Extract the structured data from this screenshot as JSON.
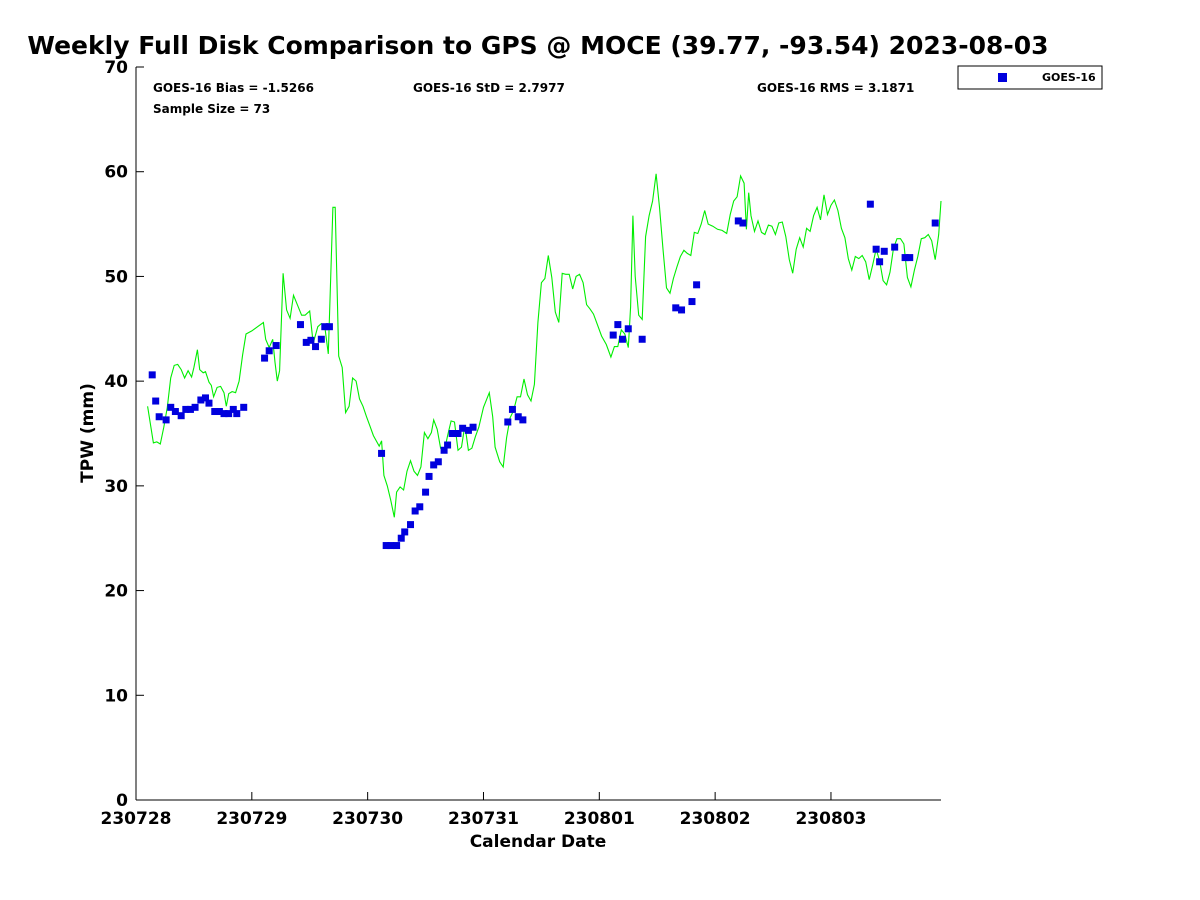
{
  "chart_data": {
    "type": "scatter",
    "title": "Weekly Full Disk Comparison to GPS @ MOCE (39.77, -93.54) 2023-08-03",
    "xlabel": "Calendar Date",
    "ylabel": "TPW (mm)",
    "xlim": [
      0,
      6.95
    ],
    "ylim": [
      0,
      70
    ],
    "yticks": [
      0,
      10,
      20,
      30,
      40,
      50,
      60,
      70
    ],
    "xticks": [
      {
        "value": 0,
        "label": "230728"
      },
      {
        "value": 1,
        "label": "230729"
      },
      {
        "value": 2,
        "label": "230730"
      },
      {
        "value": 3,
        "label": "230731"
      },
      {
        "value": 4,
        "label": "230801"
      },
      {
        "value": 5,
        "label": "230802"
      },
      {
        "value": 6,
        "label": "230803"
      }
    ],
    "grid": false,
    "legend": {
      "position": "top-right",
      "entries": [
        "GOES-16"
      ]
    },
    "stats": {
      "bias": "GOES-16 Bias = -1.5266",
      "std": "GOES-16 StD = 2.7977",
      "rms": "GOES-16 RMS = 3.1871",
      "sample": "Sample Size = 73"
    },
    "series": [
      {
        "name": "GOES-16",
        "kind": "scatter",
        "color": "#0000dd",
        "points": [
          [
            0.14,
            40.6
          ],
          [
            0.17,
            38.1
          ],
          [
            0.2,
            36.6
          ],
          [
            0.26,
            36.3
          ],
          [
            0.3,
            37.5
          ],
          [
            0.34,
            37.1
          ],
          [
            0.39,
            36.7
          ],
          [
            0.43,
            37.3
          ],
          [
            0.47,
            37.3
          ],
          [
            0.51,
            37.5
          ],
          [
            0.56,
            38.2
          ],
          [
            0.6,
            38.4
          ],
          [
            0.63,
            37.9
          ],
          [
            0.68,
            37.1
          ],
          [
            0.72,
            37.1
          ],
          [
            0.76,
            36.9
          ],
          [
            0.8,
            36.9
          ],
          [
            0.84,
            37.3
          ],
          [
            0.87,
            36.9
          ],
          [
            0.93,
            37.5
          ],
          [
            1.11,
            42.2
          ],
          [
            1.15,
            42.9
          ],
          [
            1.21,
            43.4
          ],
          [
            1.42,
            45.4
          ],
          [
            1.47,
            43.7
          ],
          [
            1.51,
            43.9
          ],
          [
            1.55,
            43.3
          ],
          [
            1.6,
            44.0
          ],
          [
            1.63,
            45.2
          ],
          [
            1.67,
            45.2
          ],
          [
            2.12,
            33.1
          ],
          [
            2.16,
            24.3
          ],
          [
            2.2,
            24.3
          ],
          [
            2.25,
            24.3
          ],
          [
            2.29,
            25.0
          ],
          [
            2.32,
            25.6
          ],
          [
            2.37,
            26.3
          ],
          [
            2.41,
            27.6
          ],
          [
            2.45,
            28.0
          ],
          [
            2.5,
            29.4
          ],
          [
            2.53,
            30.9
          ],
          [
            2.57,
            32.0
          ],
          [
            2.61,
            32.3
          ],
          [
            2.66,
            33.4
          ],
          [
            2.69,
            33.9
          ],
          [
            2.73,
            35.0
          ],
          [
            2.78,
            35.0
          ],
          [
            2.82,
            35.5
          ],
          [
            2.87,
            35.3
          ],
          [
            2.91,
            35.6
          ],
          [
            3.21,
            36.1
          ],
          [
            3.25,
            37.3
          ],
          [
            3.3,
            36.6
          ],
          [
            3.34,
            36.3
          ],
          [
            4.12,
            44.4
          ],
          [
            4.16,
            45.4
          ],
          [
            4.2,
            44.0
          ],
          [
            4.25,
            45.0
          ],
          [
            4.37,
            44.0
          ],
          [
            4.66,
            47.0
          ],
          [
            4.71,
            46.8
          ],
          [
            4.8,
            47.6
          ],
          [
            4.84,
            49.2
          ],
          [
            5.2,
            55.3
          ],
          [
            5.24,
            55.1
          ],
          [
            6.34,
            56.9
          ],
          [
            6.39,
            52.6
          ],
          [
            6.42,
            51.4
          ],
          [
            6.46,
            52.4
          ],
          [
            6.55,
            52.8
          ],
          [
            6.64,
            51.8
          ],
          [
            6.68,
            51.8
          ],
          [
            6.9,
            55.1
          ]
        ]
      },
      {
        "name": "GPS",
        "kind": "line",
        "color": "#00ee00",
        "points": [
          [
            0.1,
            37.6
          ],
          [
            0.15,
            34.1
          ],
          [
            0.18,
            34.2
          ],
          [
            0.21,
            34.0
          ],
          [
            0.24,
            35.6
          ],
          [
            0.27,
            37.5
          ],
          [
            0.3,
            40.3
          ],
          [
            0.33,
            41.5
          ],
          [
            0.36,
            41.6
          ],
          [
            0.39,
            41.1
          ],
          [
            0.42,
            40.3
          ],
          [
            0.45,
            41.0
          ],
          [
            0.48,
            40.4
          ],
          [
            0.5,
            41.3
          ],
          [
            0.53,
            43.0
          ],
          [
            0.55,
            41.1
          ],
          [
            0.58,
            40.8
          ],
          [
            0.6,
            40.9
          ],
          [
            0.63,
            39.9
          ],
          [
            0.65,
            39.6
          ],
          [
            0.67,
            38.5
          ],
          [
            0.7,
            39.4
          ],
          [
            0.73,
            39.5
          ],
          [
            0.76,
            38.9
          ],
          [
            0.78,
            37.6
          ],
          [
            0.8,
            38.8
          ],
          [
            0.83,
            39.0
          ],
          [
            0.86,
            38.9
          ],
          [
            0.89,
            40.0
          ],
          [
            0.92,
            42.5
          ],
          [
            0.95,
            44.5
          ],
          [
            1.0,
            44.8
          ],
          [
            1.05,
            45.2
          ],
          [
            1.1,
            45.6
          ],
          [
            1.12,
            44.0
          ],
          [
            1.15,
            43.2
          ],
          [
            1.18,
            44.0
          ],
          [
            1.2,
            41.8
          ],
          [
            1.22,
            40.0
          ],
          [
            1.24,
            41.0
          ],
          [
            1.27,
            50.3
          ],
          [
            1.3,
            46.8
          ],
          [
            1.33,
            46.0
          ],
          [
            1.36,
            48.2
          ],
          [
            1.4,
            47.1
          ],
          [
            1.43,
            46.3
          ],
          [
            1.46,
            46.3
          ],
          [
            1.5,
            46.7
          ],
          [
            1.53,
            43.6
          ],
          [
            1.57,
            45.2
          ],
          [
            1.6,
            45.5
          ],
          [
            1.63,
            45.2
          ],
          [
            1.66,
            42.6
          ],
          [
            1.7,
            56.6
          ],
          [
            1.72,
            56.6
          ],
          [
            1.75,
            42.4
          ],
          [
            1.78,
            41.3
          ],
          [
            1.81,
            37.0
          ],
          [
            1.84,
            37.6
          ],
          [
            1.87,
            40.3
          ],
          [
            1.9,
            40.0
          ],
          [
            1.93,
            38.3
          ],
          [
            1.96,
            37.6
          ],
          [
            1.99,
            36.6
          ],
          [
            2.02,
            35.7
          ],
          [
            2.05,
            34.8
          ],
          [
            2.1,
            33.8
          ],
          [
            2.12,
            34.3
          ],
          [
            2.14,
            31.0
          ],
          [
            2.17,
            30.0
          ],
          [
            2.2,
            28.6
          ],
          [
            2.23,
            27.0
          ],
          [
            2.25,
            29.4
          ],
          [
            2.28,
            29.9
          ],
          [
            2.31,
            29.6
          ],
          [
            2.34,
            31.4
          ],
          [
            2.37,
            32.4
          ],
          [
            2.4,
            31.4
          ],
          [
            2.43,
            31.0
          ],
          [
            2.46,
            31.8
          ],
          [
            2.49,
            35.1
          ],
          [
            2.52,
            34.5
          ],
          [
            2.55,
            35.1
          ],
          [
            2.57,
            36.3
          ],
          [
            2.6,
            35.4
          ],
          [
            2.63,
            33.6
          ],
          [
            2.66,
            33.2
          ],
          [
            2.69,
            34.8
          ],
          [
            2.72,
            36.2
          ],
          [
            2.75,
            36.1
          ],
          [
            2.78,
            33.4
          ],
          [
            2.81,
            33.7
          ],
          [
            2.84,
            35.8
          ],
          [
            2.87,
            33.4
          ],
          [
            2.9,
            33.6
          ],
          [
            2.93,
            34.7
          ],
          [
            2.96,
            35.6
          ],
          [
            3.0,
            37.5
          ],
          [
            3.05,
            38.9
          ],
          [
            3.08,
            36.6
          ],
          [
            3.1,
            33.7
          ],
          [
            3.14,
            32.3
          ],
          [
            3.17,
            31.8
          ],
          [
            3.2,
            34.6
          ],
          [
            3.23,
            36.5
          ],
          [
            3.26,
            37.2
          ],
          [
            3.29,
            38.5
          ],
          [
            3.32,
            38.5
          ],
          [
            3.35,
            40.2
          ],
          [
            3.38,
            38.7
          ],
          [
            3.41,
            38.1
          ],
          [
            3.44,
            39.7
          ],
          [
            3.47,
            45.6
          ],
          [
            3.5,
            49.4
          ],
          [
            3.53,
            49.8
          ],
          [
            3.56,
            52.0
          ],
          [
            3.59,
            49.9
          ],
          [
            3.62,
            46.6
          ],
          [
            3.65,
            45.6
          ],
          [
            3.68,
            50.3
          ],
          [
            3.71,
            50.2
          ],
          [
            3.74,
            50.2
          ],
          [
            3.77,
            48.8
          ],
          [
            3.8,
            50.0
          ],
          [
            3.83,
            50.2
          ],
          [
            3.86,
            49.4
          ],
          [
            3.89,
            47.3
          ],
          [
            3.92,
            46.9
          ],
          [
            3.95,
            46.4
          ],
          [
            3.98,
            45.5
          ],
          [
            4.02,
            44.3
          ],
          [
            4.06,
            43.5
          ],
          [
            4.1,
            42.3
          ],
          [
            4.13,
            43.3
          ],
          [
            4.16,
            43.3
          ],
          [
            4.19,
            44.9
          ],
          [
            4.22,
            44.5
          ],
          [
            4.25,
            43.2
          ],
          [
            4.27,
            47.1
          ],
          [
            4.29,
            55.8
          ],
          [
            4.31,
            50.0
          ],
          [
            4.34,
            46.3
          ],
          [
            4.37,
            45.9
          ],
          [
            4.4,
            53.8
          ],
          [
            4.43,
            55.8
          ],
          [
            4.46,
            57.2
          ],
          [
            4.49,
            59.8
          ],
          [
            4.52,
            56.6
          ],
          [
            4.55,
            52.6
          ],
          [
            4.58,
            48.9
          ],
          [
            4.61,
            48.4
          ],
          [
            4.64,
            49.8
          ],
          [
            4.67,
            50.9
          ],
          [
            4.7,
            51.9
          ],
          [
            4.73,
            52.5
          ],
          [
            4.76,
            52.2
          ],
          [
            4.79,
            52.0
          ],
          [
            4.82,
            54.2
          ],
          [
            4.85,
            54.1
          ],
          [
            4.88,
            55.0
          ],
          [
            4.91,
            56.3
          ],
          [
            4.94,
            55.0
          ],
          [
            4.98,
            54.8
          ],
          [
            5.02,
            54.5
          ],
          [
            5.06,
            54.4
          ],
          [
            5.1,
            54.1
          ],
          [
            5.13,
            55.9
          ],
          [
            5.16,
            57.2
          ],
          [
            5.19,
            57.6
          ],
          [
            5.22,
            59.6
          ],
          [
            5.25,
            58.9
          ],
          [
            5.27,
            54.5
          ],
          [
            5.29,
            58.0
          ],
          [
            5.31,
            55.8
          ],
          [
            5.34,
            54.3
          ],
          [
            5.37,
            55.3
          ],
          [
            5.4,
            54.2
          ],
          [
            5.43,
            54.0
          ],
          [
            5.46,
            54.9
          ],
          [
            5.49,
            54.8
          ],
          [
            5.52,
            54.0
          ],
          [
            5.55,
            55.1
          ],
          [
            5.58,
            55.2
          ],
          [
            5.61,
            53.8
          ],
          [
            5.64,
            51.6
          ],
          [
            5.67,
            50.3
          ],
          [
            5.7,
            52.6
          ],
          [
            5.73,
            53.7
          ],
          [
            5.76,
            52.8
          ],
          [
            5.79,
            54.6
          ],
          [
            5.82,
            54.3
          ],
          [
            5.85,
            55.8
          ],
          [
            5.88,
            56.6
          ],
          [
            5.91,
            55.4
          ],
          [
            5.94,
            57.8
          ],
          [
            5.97,
            55.9
          ],
          [
            6.0,
            56.8
          ],
          [
            6.03,
            57.3
          ],
          [
            6.06,
            56.3
          ],
          [
            6.09,
            54.6
          ],
          [
            6.12,
            53.7
          ],
          [
            6.15,
            51.7
          ],
          [
            6.18,
            50.6
          ],
          [
            6.21,
            51.9
          ],
          [
            6.24,
            51.7
          ],
          [
            6.27,
            52.0
          ],
          [
            6.3,
            51.4
          ],
          [
            6.33,
            49.7
          ],
          [
            6.36,
            51.1
          ],
          [
            6.39,
            52.6
          ],
          [
            6.42,
            51.5
          ],
          [
            6.45,
            49.6
          ],
          [
            6.48,
            49.2
          ],
          [
            6.51,
            50.4
          ],
          [
            6.54,
            52.7
          ],
          [
            6.57,
            53.6
          ],
          [
            6.6,
            53.6
          ],
          [
            6.63,
            53.1
          ],
          [
            6.66,
            49.9
          ],
          [
            6.69,
            49.0
          ],
          [
            6.72,
            50.6
          ],
          [
            6.75,
            51.9
          ],
          [
            6.78,
            53.6
          ],
          [
            6.81,
            53.7
          ],
          [
            6.84,
            54.0
          ],
          [
            6.87,
            53.4
          ],
          [
            6.9,
            51.6
          ],
          [
            6.93,
            54.0
          ],
          [
            6.95,
            57.2
          ]
        ]
      }
    ]
  }
}
